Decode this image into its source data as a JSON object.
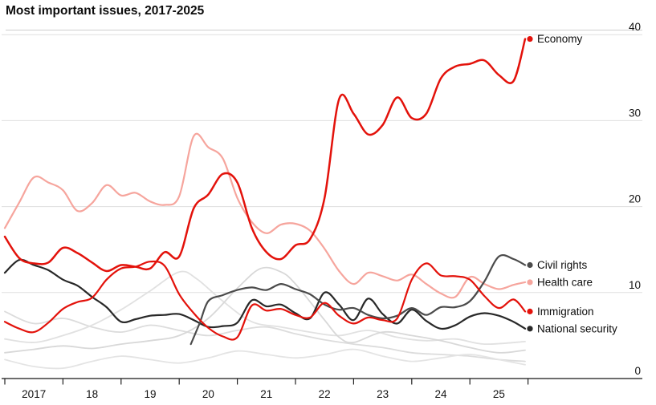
{
  "chart_data": {
    "type": "line",
    "title": "Most important issues, 2017-2025",
    "x_axis": {
      "tick_years": [
        2017,
        2018,
        2019,
        2020,
        2021,
        2022,
        2023,
        2024,
        2025,
        2026
      ],
      "labels": [
        "2017",
        "18",
        "19",
        "20",
        "21",
        "22",
        "23",
        "24",
        "25"
      ],
      "label_center_years": [
        2017.5,
        2018.5,
        2019.5,
        2020.5,
        2021.5,
        2022.5,
        2023.5,
        2024.5,
        2025.5
      ]
    },
    "y_axis": {
      "ticks": [
        0,
        10,
        20,
        30,
        40
      ],
      "range": [
        0,
        40
      ],
      "side": "right",
      "grid": true
    },
    "colors": {
      "red": "#E3120B",
      "pink": "#F6A59D",
      "civil_rights_gray": "#4B4B4B",
      "national_security_dark": "#282828",
      "background_gray": "#DCDCDC",
      "gridline": "#DFDFDF",
      "axis": "#161616"
    },
    "series": [
      {
        "name": "unlabeled-other-issue-1",
        "label": "",
        "labeled": false,
        "color": "#DCDCDC",
        "stroke_width": 1.8,
        "x": [
          2017,
          2017.5,
          2018,
          2018.5,
          2019,
          2019.5,
          2020,
          2020.5,
          2021,
          2021.5,
          2022,
          2022.5,
          2023,
          2023.5,
          2024,
          2024.5,
          2025,
          2025.5,
          2025.95
        ],
        "values": [
          7.8,
          6.4,
          7.0,
          6.0,
          5.4,
          6.2,
          5.6,
          5.0,
          5.6,
          6.0,
          5.2,
          4.5,
          4.0,
          3.6,
          3.0,
          2.8,
          2.6,
          2.2,
          2.0
        ]
      },
      {
        "name": "unlabeled-other-issue-2",
        "label": "",
        "labeled": false,
        "color": "#E1E1E1",
        "stroke_width": 1.8,
        "x": [
          2017,
          2017.5,
          2018,
          2018.5,
          2019,
          2019.5,
          2020,
          2020.3,
          2020.75,
          2021.25,
          2021.75,
          2022.25,
          2022.75,
          2023.25,
          2023.75,
          2024.25,
          2024.75,
          2025.25,
          2025.95
        ],
        "values": [
          4.6,
          4.2,
          5.0,
          6.2,
          8.0,
          10.2,
          12.4,
          11.6,
          9.0,
          6.6,
          6.0,
          5.4,
          5.0,
          5.6,
          4.8,
          4.4,
          4.6,
          4.0,
          4.3
        ]
      },
      {
        "name": "unlabeled-other-issue-3",
        "label": "",
        "labeled": false,
        "color": "#D8D8D8",
        "stroke_width": 1.8,
        "x": [
          2017,
          2017.5,
          2018,
          2018.5,
          2019,
          2019.5,
          2020,
          2020.5,
          2021,
          2021.4,
          2021.75,
          2022,
          2022.5,
          2022.75,
          2023,
          2023.5,
          2024,
          2024.5,
          2025,
          2025.5,
          2025.95
        ],
        "values": [
          3.0,
          3.4,
          3.8,
          3.5,
          4.0,
          4.4,
          5.0,
          7.0,
          10.5,
          12.8,
          12.4,
          11.0,
          6.8,
          4.8,
          4.2,
          5.4,
          5.0,
          4.4,
          3.6,
          3.0,
          3.3
        ]
      },
      {
        "name": "unlabeled-other-issue-4",
        "label": "",
        "labeled": false,
        "color": "#E4E4E4",
        "stroke_width": 1.8,
        "x": [
          2017,
          2017.5,
          2018,
          2018.5,
          2019,
          2019.5,
          2020,
          2020.5,
          2021,
          2021.5,
          2022,
          2022.5,
          2023,
          2023.5,
          2024,
          2024.5,
          2025,
          2025.5,
          2025.95
        ],
        "values": [
          2.2,
          1.4,
          1.2,
          2.0,
          2.6,
          2.2,
          1.8,
          2.4,
          3.2,
          2.8,
          2.4,
          2.8,
          3.4,
          2.6,
          2.0,
          2.4,
          2.8,
          2.2,
          1.6
        ]
      },
      {
        "name": "health-care",
        "label": "Health care",
        "labeled": true,
        "color": "#F6A59D",
        "stroke_width": 2.2,
        "x": [
          2017,
          2017.25,
          2017.5,
          2017.75,
          2018,
          2018.25,
          2018.5,
          2018.75,
          2019,
          2019.25,
          2019.5,
          2019.75,
          2020,
          2020.25,
          2020.5,
          2020.75,
          2021,
          2021.25,
          2021.5,
          2021.75,
          2022,
          2022.25,
          2022.5,
          2022.75,
          2023,
          2023.25,
          2023.5,
          2023.75,
          2024,
          2024.25,
          2024.5,
          2024.75,
          2025,
          2025.25,
          2025.5,
          2025.75,
          2025.95
        ],
        "values": [
          17.5,
          20.5,
          23.4,
          22.8,
          21.9,
          19.5,
          20.4,
          22.5,
          21.3,
          21.6,
          20.6,
          20.2,
          21.2,
          28.2,
          26.9,
          25.6,
          21.0,
          18.2,
          16.9,
          17.9,
          18.0,
          17.2,
          15.1,
          12.5,
          11.0,
          12.3,
          11.9,
          11.4,
          12.1,
          11.0,
          9.9,
          9.5,
          11.8,
          11.0,
          10.4,
          10.9,
          11.2
        ]
      },
      {
        "name": "national-security",
        "label": "National security",
        "labeled": true,
        "color": "#282828",
        "stroke_width": 2.2,
        "x": [
          2017,
          2017.25,
          2017.5,
          2017.75,
          2018,
          2018.25,
          2018.5,
          2018.75,
          2019,
          2019.25,
          2019.5,
          2019.75,
          2020,
          2020.25,
          2020.5,
          2020.75,
          2021,
          2021.25,
          2021.5,
          2021.75,
          2022,
          2022.25,
          2022.5,
          2022.75,
          2023,
          2023.25,
          2023.5,
          2023.75,
          2024,
          2024.25,
          2024.5,
          2024.75,
          2025,
          2025.25,
          2025.5,
          2025.75,
          2025.95
        ],
        "values": [
          12.3,
          13.8,
          13.2,
          12.6,
          11.5,
          10.8,
          9.5,
          8.3,
          6.6,
          6.9,
          7.3,
          7.4,
          7.5,
          6.8,
          6.0,
          6.1,
          6.5,
          9.1,
          8.4,
          8.6,
          7.6,
          7.0,
          10.0,
          8.6,
          6.8,
          9.3,
          7.5,
          6.4,
          8.0,
          6.7,
          5.8,
          6.2,
          7.2,
          7.6,
          7.3,
          6.6,
          5.8
        ]
      },
      {
        "name": "civil-rights",
        "label": "Civil rights",
        "labeled": true,
        "color": "#4B4B4B",
        "stroke_width": 2.2,
        "x": [
          2020.2,
          2020.35,
          2020.5,
          2020.75,
          2021,
          2021.25,
          2021.5,
          2021.75,
          2022,
          2022.25,
          2022.5,
          2022.75,
          2023,
          2023.25,
          2023.5,
          2023.75,
          2024,
          2024.25,
          2024.5,
          2024.75,
          2025,
          2025.25,
          2025.5,
          2025.75,
          2025.95
        ],
        "values": [
          4.0,
          6.4,
          9.0,
          9.7,
          10.3,
          10.6,
          10.3,
          11.0,
          10.4,
          9.8,
          8.6,
          8.0,
          8.2,
          7.4,
          7.0,
          7.3,
          8.2,
          7.4,
          8.3,
          8.3,
          9.0,
          11.3,
          14.2,
          13.9,
          13.2
        ]
      },
      {
        "name": "immigration",
        "label": "Immigration",
        "labeled": true,
        "color": "#E3120B",
        "stroke_width": 2.2,
        "x": [
          2017,
          2017.25,
          2017.5,
          2017.75,
          2018,
          2018.25,
          2018.5,
          2018.75,
          2019,
          2019.25,
          2019.5,
          2019.75,
          2020,
          2020.25,
          2020.5,
          2020.75,
          2021,
          2021.25,
          2021.5,
          2021.75,
          2022,
          2022.25,
          2022.5,
          2022.75,
          2023,
          2023.25,
          2023.5,
          2023.75,
          2024,
          2024.25,
          2024.5,
          2024.75,
          2025,
          2025.25,
          2025.5,
          2025.75,
          2025.95
        ],
        "values": [
          6.6,
          5.8,
          5.4,
          6.5,
          8.1,
          8.9,
          9.4,
          11.5,
          12.8,
          13.0,
          13.6,
          13.1,
          9.8,
          7.6,
          5.9,
          4.9,
          4.8,
          8.5,
          7.9,
          8.1,
          7.4,
          7.1,
          8.8,
          7.3,
          6.4,
          7.1,
          6.8,
          7.0,
          11.5,
          13.4,
          12.0,
          11.9,
          11.5,
          9.6,
          8.2,
          9.2,
          7.8
        ]
      },
      {
        "name": "economy",
        "label": "Economy",
        "labeled": true,
        "color": "#E3120B",
        "stroke_width": 2.5,
        "x": [
          2017,
          2017.25,
          2017.5,
          2017.75,
          2018,
          2018.25,
          2018.5,
          2018.75,
          2019,
          2019.25,
          2019.5,
          2019.75,
          2020,
          2020.25,
          2020.5,
          2020.75,
          2021,
          2021.25,
          2021.5,
          2021.75,
          2022,
          2022.25,
          2022.5,
          2022.75,
          2023,
          2023.25,
          2023.5,
          2023.75,
          2024,
          2024.25,
          2024.5,
          2024.75,
          2025,
          2025.25,
          2025.5,
          2025.75,
          2025.95
        ],
        "values": [
          16.5,
          14.0,
          13.4,
          13.5,
          15.2,
          14.6,
          13.5,
          12.5,
          13.2,
          13.0,
          12.8,
          14.7,
          14.2,
          19.8,
          21.4,
          23.8,
          22.8,
          17.5,
          14.7,
          13.9,
          15.5,
          16.2,
          21.0,
          32.5,
          30.8,
          28.4,
          29.5,
          32.7,
          30.3,
          30.8,
          34.9,
          36.3,
          36.6,
          37.0,
          35.3,
          34.6,
          39.5
        ]
      }
    ]
  }
}
